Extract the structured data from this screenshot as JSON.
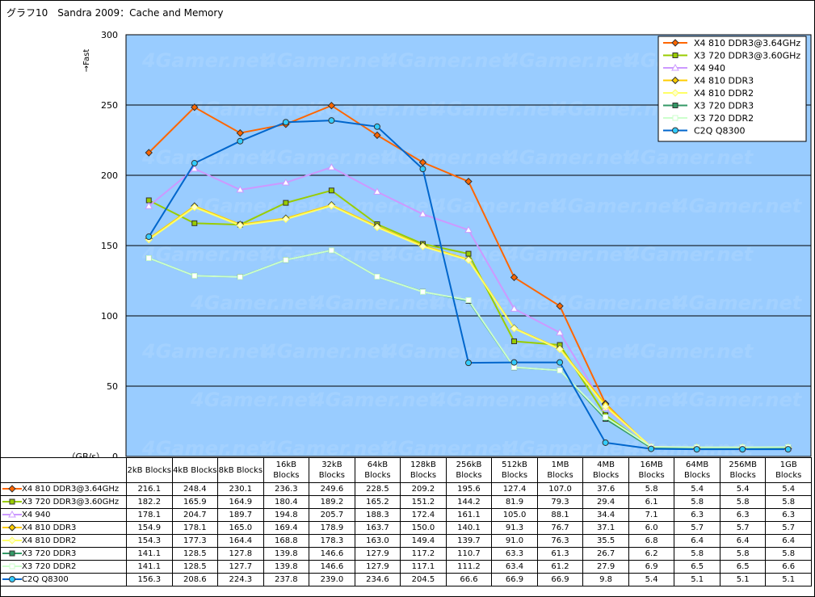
{
  "title": "グラフ10　Sandra 2009：Cache and Memory",
  "chart_data": {
    "type": "line",
    "title": "グラフ10　Sandra 2009：Cache and Memory",
    "ylabel": "→Fast",
    "yunit_label": "（GB/s）",
    "ylim": [
      0,
      300
    ],
    "yticks": [
      0,
      50,
      100,
      150,
      200,
      250,
      300
    ],
    "grid": true,
    "legend_position": "top-right",
    "categories": [
      "2kB Blocks",
      "4kB Blocks",
      "8kB Blocks",
      "16kB Blocks",
      "32kB Blocks",
      "64kB Blocks",
      "128kB Blocks",
      "256kB Blocks",
      "512kB Blocks",
      "1MB Blocks",
      "4MB Blocks",
      "16MB Blocks",
      "64MB Blocks",
      "256MB Blocks",
      "1GB Blocks"
    ],
    "series": [
      {
        "name": "X4 810 DDR3@3.64GHz",
        "color": "#ff6600",
        "marker": "diamond",
        "marker_fill": "#ff6600",
        "values": [
          216.1,
          248.4,
          230.1,
          236.3,
          249.6,
          228.5,
          209.2,
          195.6,
          127.4,
          107.0,
          37.6,
          5.8,
          5.4,
          5.4,
          5.4
        ]
      },
      {
        "name": "X3 720 DDR3@3.60GHz",
        "color": "#99cc00",
        "marker": "square",
        "marker_fill": "#99cc00",
        "values": [
          182.2,
          165.9,
          164.9,
          180.4,
          189.2,
          165.2,
          151.2,
          144.2,
          81.9,
          79.3,
          29.4,
          6.1,
          5.8,
          5.8,
          5.8
        ]
      },
      {
        "name": "X4 940",
        "color": "#cc99ff",
        "marker": "triangle",
        "marker_fill": "#ffffff",
        "values": [
          178.1,
          204.7,
          189.7,
          194.8,
          205.7,
          188.3,
          172.4,
          161.1,
          105.0,
          88.1,
          34.4,
          7.1,
          6.3,
          6.3,
          6.3
        ]
      },
      {
        "name": "X4 810 DDR3",
        "color": "#ffcc00",
        "marker": "diamond",
        "marker_fill": "#ffcc00",
        "values": [
          154.9,
          178.1,
          165.0,
          169.4,
          178.9,
          163.7,
          150.0,
          140.1,
          91.3,
          76.7,
          37.1,
          6.0,
          5.7,
          5.7,
          5.7
        ]
      },
      {
        "name": "X4 810 DDR2",
        "color": "#ffff66",
        "marker": "diamond",
        "marker_fill": "#ffffcc",
        "values": [
          154.3,
          177.3,
          164.4,
          168.8,
          178.3,
          163.0,
          149.4,
          139.7,
          91.0,
          76.3,
          35.5,
          6.8,
          6.4,
          6.4,
          6.4
        ]
      },
      {
        "name": "X3 720 DDR3",
        "color": "#339966",
        "marker": "square",
        "marker_fill": "#339966",
        "values": [
          141.1,
          128.5,
          127.8,
          139.8,
          146.6,
          127.9,
          117.2,
          110.7,
          63.3,
          61.3,
          26.7,
          6.2,
          5.8,
          5.8,
          5.8
        ]
      },
      {
        "name": "X3 720 DDR2",
        "color": "#ccffcc",
        "marker": "square",
        "marker_fill": "#ffffff",
        "values": [
          141.1,
          128.5,
          127.7,
          139.8,
          146.6,
          127.9,
          117.1,
          111.2,
          63.4,
          61.2,
          27.9,
          6.9,
          6.5,
          6.5,
          6.6
        ]
      },
      {
        "name": "C2Q Q8300",
        "color": "#0066cc",
        "marker": "circle",
        "marker_fill": "#33ccff",
        "values": [
          156.3,
          208.6,
          224.3,
          237.8,
          239.0,
          234.6,
          204.5,
          66.6,
          66.9,
          66.9,
          9.8,
          5.4,
          5.1,
          5.1,
          5.1
        ]
      }
    ],
    "table_values": [
      [
        "216.1",
        "248.4",
        "230.1",
        "236.3",
        "249.6",
        "228.5",
        "209.2",
        "195.6",
        "127.4",
        "107.0",
        "37.6",
        "5.8",
        "5.4",
        "5.4",
        "5.4"
      ],
      [
        "182.2",
        "165.9",
        "164.9",
        "180.4",
        "189.2",
        "165.2",
        "151.2",
        "144.2",
        "81.9",
        "79.3",
        "29.4",
        "6.1",
        "5.8",
        "5.8",
        "5.8"
      ],
      [
        "178.1",
        "204.7",
        "189.7",
        "194.8",
        "205.7",
        "188.3",
        "172.4",
        "161.1",
        "105.0",
        "88.1",
        "34.4",
        "7.1",
        "6.3",
        "6.3",
        "6.3"
      ],
      [
        "154.9",
        "178.1",
        "165.0",
        "169.4",
        "178.9",
        "163.7",
        "150.0",
        "140.1",
        "91.3",
        "76.7",
        "37.1",
        "6.0",
        "5.7",
        "5.7",
        "5.7"
      ],
      [
        "154.3",
        "177.3",
        "164.4",
        "168.8",
        "178.3",
        "163.0",
        "149.4",
        "139.7",
        "91.0",
        "76.3",
        "35.5",
        "6.8",
        "6.4",
        "6.4",
        "6.4"
      ],
      [
        "141.1",
        "128.5",
        "127.8",
        "139.8",
        "146.6",
        "127.9",
        "117.2",
        "110.7",
        "63.3",
        "61.3",
        "26.7",
        "6.2",
        "5.8",
        "5.8",
        "5.8"
      ],
      [
        "141.1",
        "128.5",
        "127.7",
        "139.8",
        "146.6",
        "127.9",
        "117.1",
        "111.2",
        "63.4",
        "61.2",
        "27.9",
        "6.9",
        "6.5",
        "6.5",
        "6.6"
      ],
      [
        "156.3",
        "208.6",
        "224.3",
        "237.8",
        "239.0",
        "234.6",
        "204.5",
        "66.6",
        "66.9",
        "66.9",
        "9.8",
        "5.4",
        "5.1",
        "5.1",
        "5.1"
      ]
    ],
    "plot_background": "#99ccff",
    "gridline_color": "#000000"
  }
}
